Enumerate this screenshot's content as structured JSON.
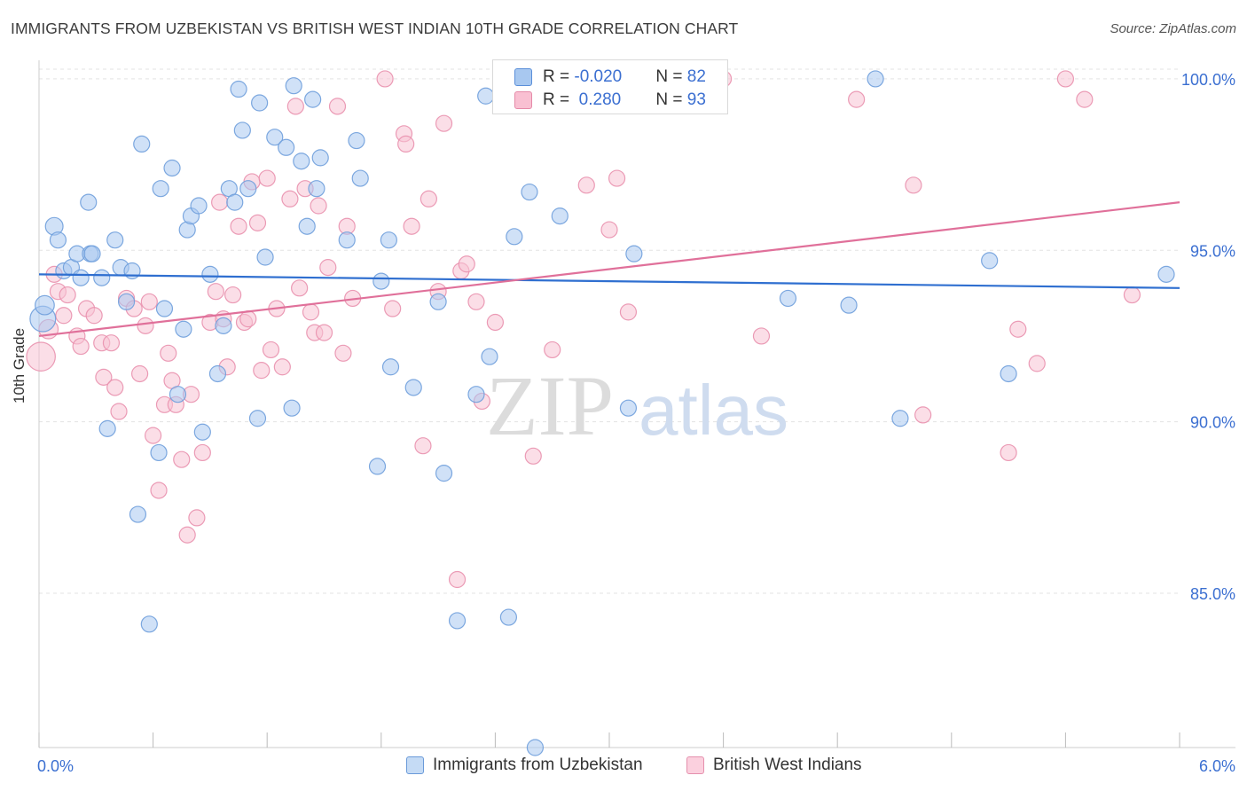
{
  "header": {
    "title": "IMMIGRANTS FROM UZBEKISTAN VS BRITISH WEST INDIAN 10TH GRADE CORRELATION CHART",
    "source": "Source: ZipAtlas.com"
  },
  "watermark": {
    "zip": "ZIP",
    "atlas": "atlas"
  },
  "stats": {
    "rows": [
      {
        "r_label": "R = ",
        "r_value": "-0.020",
        "n_label": "N = ",
        "n_value": "82",
        "color": "#a8c8f0",
        "border": "#5b8fd9"
      },
      {
        "r_label": "R = ",
        "r_value": " 0.280",
        "n_label": "N = ",
        "n_value": "93",
        "color": "#f9c0d2",
        "border": "#e58aa8"
      }
    ]
  },
  "legend": [
    {
      "label": "Immigrants from Uzbekistan",
      "color": "#c5dbf5",
      "border": "#6a9ad9"
    },
    {
      "label": "British West Indians",
      "color": "#fbd0de",
      "border": "#e590ad"
    }
  ],
  "chart_data": {
    "type": "scatter",
    "title": "IMMIGRANTS FROM UZBEKISTAN VS BRITISH WEST INDIAN 10TH GRADE CORRELATION CHART",
    "xlabel": "",
    "ylabel": "10th Grade",
    "xlim": [
      0.0,
      6.0
    ],
    "ylim": [
      80.5,
      100.8
    ],
    "x_tick_labels": [
      "0.0%",
      "6.0%"
    ],
    "y_ticks": [
      85.0,
      90.0,
      95.0,
      100.0
    ],
    "y_tick_labels": [
      "85.0%",
      "90.0%",
      "95.0%",
      "100.0%"
    ],
    "grid": true,
    "legend_position": "bottom",
    "colors": {
      "blue_fill": "#a9c8f0",
      "blue_stroke": "#6f9fdc",
      "blue_line": "#2f6fd0",
      "pink_fill": "#f8c2d3",
      "pink_stroke": "#e991ae",
      "pink_line": "#e0709a"
    },
    "series": [
      {
        "name": "Immigrants from Uzbekistan",
        "trend": {
          "x": [
            0.0,
            6.0
          ],
          "y": [
            94.3,
            93.9
          ]
        },
        "points": [
          [
            0.02,
            93.0,
            1.6
          ],
          [
            0.03,
            93.4,
            1.2
          ],
          [
            0.08,
            95.7,
            1.1
          ],
          [
            0.1,
            95.3,
            1.0
          ],
          [
            0.13,
            94.4,
            1.0
          ],
          [
            0.17,
            94.5,
            1.0
          ],
          [
            0.2,
            94.9,
            1.0
          ],
          [
            0.22,
            94.2,
            1.0
          ],
          [
            0.26,
            96.4,
            1.0
          ],
          [
            0.27,
            94.9,
            1.0
          ],
          [
            0.28,
            94.9,
            1.0
          ],
          [
            0.33,
            94.2,
            1.0
          ],
          [
            0.36,
            89.8,
            1.0
          ],
          [
            0.4,
            95.3,
            1.0
          ],
          [
            0.43,
            94.5,
            1.0
          ],
          [
            0.46,
            93.5,
            1.0
          ],
          [
            0.49,
            94.4,
            1.0
          ],
          [
            0.52,
            87.3,
            1.0
          ],
          [
            0.54,
            98.1,
            1.0
          ],
          [
            0.58,
            84.1,
            1.0
          ],
          [
            0.63,
            89.1,
            1.0
          ],
          [
            0.64,
            96.8,
            1.0
          ],
          [
            0.66,
            93.3,
            1.0
          ],
          [
            0.7,
            97.4,
            1.0
          ],
          [
            0.73,
            90.8,
            1.0
          ],
          [
            0.76,
            92.7,
            1.0
          ],
          [
            0.78,
            95.6,
            1.0
          ],
          [
            0.8,
            96.0,
            1.0
          ],
          [
            0.84,
            96.3,
            1.0
          ],
          [
            0.86,
            89.7,
            1.0
          ],
          [
            0.9,
            94.3,
            1.0
          ],
          [
            0.94,
            91.4,
            1.0
          ],
          [
            0.97,
            92.8,
            1.0
          ],
          [
            1.0,
            96.8,
            1.0
          ],
          [
            1.03,
            96.4,
            1.0
          ],
          [
            1.05,
            99.7,
            1.0
          ],
          [
            1.07,
            98.5,
            1.0
          ],
          [
            1.1,
            96.8,
            1.0
          ],
          [
            1.15,
            90.1,
            1.0
          ],
          [
            1.16,
            99.3,
            1.0
          ],
          [
            1.19,
            94.8,
            1.0
          ],
          [
            1.24,
            98.3,
            1.0
          ],
          [
            1.3,
            98.0,
            1.0
          ],
          [
            1.33,
            90.4,
            1.0
          ],
          [
            1.34,
            99.8,
            1.0
          ],
          [
            1.38,
            97.6,
            1.0
          ],
          [
            1.41,
            95.7,
            1.0
          ],
          [
            1.44,
            99.4,
            1.0
          ],
          [
            1.46,
            96.8,
            1.0
          ],
          [
            1.48,
            97.7,
            1.0
          ],
          [
            1.62,
            95.3,
            1.0
          ],
          [
            1.67,
            98.2,
            1.0
          ],
          [
            1.69,
            97.1,
            1.0
          ],
          [
            1.78,
            88.7,
            1.0
          ],
          [
            1.8,
            94.1,
            1.0
          ],
          [
            1.84,
            95.3,
            1.0
          ],
          [
            1.85,
            91.6,
            1.0
          ],
          [
            1.97,
            91.0,
            1.0
          ],
          [
            2.1,
            93.5,
            1.0
          ],
          [
            2.13,
            88.5,
            1.0
          ],
          [
            2.2,
            84.2,
            1.0
          ],
          [
            2.3,
            90.8,
            1.0
          ],
          [
            2.35,
            99.5,
            1.0
          ],
          [
            2.37,
            91.9,
            1.0
          ],
          [
            2.45,
            100.0,
            1.0
          ],
          [
            2.47,
            84.3,
            1.0
          ],
          [
            2.5,
            95.4,
            1.0
          ],
          [
            2.58,
            96.7,
            1.0
          ],
          [
            2.61,
            80.5,
            1.0
          ],
          [
            2.74,
            96.0,
            1.0
          ],
          [
            2.79,
            99.5,
            1.0
          ],
          [
            3.1,
            90.4,
            1.0
          ],
          [
            3.13,
            94.9,
            1.0
          ],
          [
            3.2,
            100.0,
            1.0
          ],
          [
            3.5,
            100.0,
            1.0
          ],
          [
            3.94,
            93.6,
            1.0
          ],
          [
            4.26,
            93.4,
            1.0
          ],
          [
            4.4,
            100.0,
            1.0
          ],
          [
            4.53,
            90.1,
            1.0
          ],
          [
            5.0,
            94.7,
            1.0
          ],
          [
            5.1,
            91.4,
            1.0
          ],
          [
            5.93,
            94.3,
            1.0
          ]
        ]
      },
      {
        "name": "British West Indians",
        "trend": {
          "x": [
            0.0,
            6.0
          ],
          "y": [
            92.5,
            96.4
          ]
        },
        "points": [
          [
            0.01,
            91.9,
            1.8
          ],
          [
            0.05,
            92.7,
            1.2
          ],
          [
            0.08,
            94.3,
            1.0
          ],
          [
            0.1,
            93.8,
            1.0
          ],
          [
            0.13,
            93.1,
            1.0
          ],
          [
            0.15,
            93.7,
            1.0
          ],
          [
            0.2,
            92.5,
            1.0
          ],
          [
            0.22,
            92.2,
            1.0
          ],
          [
            0.25,
            93.3,
            1.0
          ],
          [
            0.29,
            93.1,
            1.0
          ],
          [
            0.33,
            92.3,
            1.0
          ],
          [
            0.34,
            91.3,
            1.0
          ],
          [
            0.38,
            92.3,
            1.0
          ],
          [
            0.4,
            91.0,
            1.0
          ],
          [
            0.42,
            90.3,
            1.0
          ],
          [
            0.46,
            93.6,
            1.0
          ],
          [
            0.5,
            93.3,
            1.0
          ],
          [
            0.53,
            91.4,
            1.0
          ],
          [
            0.56,
            92.8,
            1.0
          ],
          [
            0.58,
            93.5,
            1.0
          ],
          [
            0.6,
            89.6,
            1.0
          ],
          [
            0.63,
            88.0,
            1.0
          ],
          [
            0.66,
            90.5,
            1.0
          ],
          [
            0.68,
            92.0,
            1.0
          ],
          [
            0.7,
            91.2,
            1.0
          ],
          [
            0.72,
            90.5,
            1.0
          ],
          [
            0.75,
            88.9,
            1.0
          ],
          [
            0.78,
            86.7,
            1.0
          ],
          [
            0.8,
            90.8,
            1.0
          ],
          [
            0.83,
            87.2,
            1.0
          ],
          [
            0.86,
            89.1,
            1.0
          ],
          [
            0.9,
            92.9,
            1.0
          ],
          [
            0.93,
            93.8,
            1.0
          ],
          [
            0.95,
            96.4,
            1.0
          ],
          [
            0.97,
            93.0,
            1.0
          ],
          [
            0.99,
            91.6,
            1.0
          ],
          [
            1.02,
            93.7,
            1.0
          ],
          [
            1.05,
            95.7,
            1.0
          ],
          [
            1.08,
            92.9,
            1.0
          ],
          [
            1.1,
            93.0,
            1.0
          ],
          [
            1.12,
            97.0,
            1.0
          ],
          [
            1.15,
            95.8,
            1.0
          ],
          [
            1.17,
            91.5,
            1.0
          ],
          [
            1.2,
            97.1,
            1.0
          ],
          [
            1.22,
            92.1,
            1.0
          ],
          [
            1.25,
            93.3,
            1.0
          ],
          [
            1.28,
            91.6,
            1.0
          ],
          [
            1.32,
            96.5,
            1.0
          ],
          [
            1.35,
            99.2,
            1.0
          ],
          [
            1.37,
            93.9,
            1.0
          ],
          [
            1.4,
            96.8,
            1.0
          ],
          [
            1.43,
            93.2,
            1.0
          ],
          [
            1.45,
            92.6,
            1.0
          ],
          [
            1.47,
            96.3,
            1.0
          ],
          [
            1.5,
            92.6,
            1.0
          ],
          [
            1.52,
            94.5,
            1.0
          ],
          [
            1.57,
            99.2,
            1.0
          ],
          [
            1.6,
            92.0,
            1.0
          ],
          [
            1.62,
            95.7,
            1.0
          ],
          [
            1.65,
            93.6,
            1.0
          ],
          [
            1.82,
            100.0,
            1.0
          ],
          [
            1.86,
            93.3,
            1.0
          ],
          [
            1.92,
            98.4,
            1.0
          ],
          [
            1.93,
            98.1,
            1.0
          ],
          [
            1.96,
            95.7,
            1.0
          ],
          [
            2.02,
            89.3,
            1.0
          ],
          [
            2.05,
            96.5,
            1.0
          ],
          [
            2.1,
            93.8,
            1.0
          ],
          [
            2.13,
            98.7,
            1.0
          ],
          [
            2.2,
            85.4,
            1.0
          ],
          [
            2.22,
            94.4,
            1.0
          ],
          [
            2.25,
            94.6,
            1.0
          ],
          [
            2.3,
            93.5,
            1.0
          ],
          [
            2.33,
            90.6,
            1.0
          ],
          [
            2.4,
            92.9,
            1.0
          ],
          [
            2.6,
            89.0,
            1.0
          ],
          [
            2.7,
            92.1,
            1.0
          ],
          [
            2.88,
            96.9,
            1.0
          ],
          [
            3.0,
            95.6,
            1.0
          ],
          [
            3.04,
            97.1,
            1.0
          ],
          [
            3.1,
            93.2,
            1.0
          ],
          [
            3.3,
            100.0,
            1.0
          ],
          [
            3.6,
            100.0,
            1.0
          ],
          [
            3.8,
            92.5,
            1.0
          ],
          [
            4.3,
            99.4,
            1.0
          ],
          [
            4.6,
            96.9,
            1.0
          ],
          [
            4.65,
            90.2,
            1.0
          ],
          [
            5.1,
            89.1,
            1.0
          ],
          [
            5.15,
            92.7,
            1.0
          ],
          [
            5.25,
            91.7,
            1.0
          ],
          [
            5.4,
            100.0,
            1.0
          ],
          [
            5.5,
            99.4,
            1.0
          ],
          [
            5.75,
            93.7,
            1.0
          ]
        ]
      }
    ]
  }
}
